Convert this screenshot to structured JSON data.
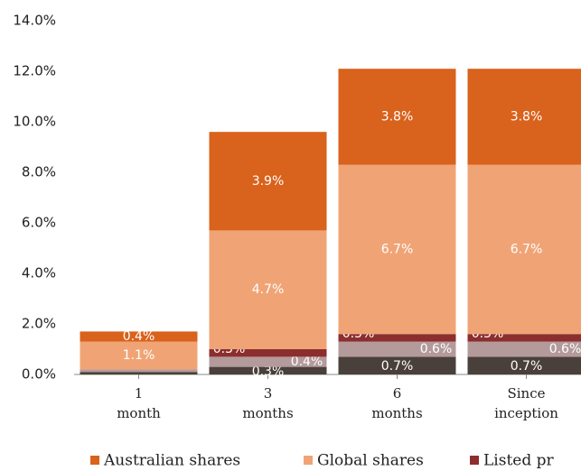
{
  "chart_data": {
    "type": "stacked_bar",
    "categories": [
      "1\nmonth",
      "3\nmonths",
      "6\nmonths",
      "Since\ninception"
    ],
    "series": [
      {
        "color": "#4a403b",
        "values": [
          0.1,
          0.3,
          0.7,
          0.7
        ],
        "value_labels": [
          "0.1%",
          "0.3%",
          "0.7%",
          "0.7%"
        ]
      },
      {
        "color": "#b49a9b",
        "values": [
          0.1,
          0.4,
          0.6,
          0.6
        ],
        "value_labels": [
          "0.1%",
          "0.4%",
          "0.6%",
          "0.6%"
        ]
      },
      {
        "name": "Listed pr",
        "color": "#8c2e2e",
        "values": [
          0.0,
          0.3,
          0.3,
          0.3
        ],
        "value_labels": [
          "0.0%",
          "0.3%",
          "0.3%",
          "0.3%"
        ]
      },
      {
        "name": "Global shares",
        "color": "#f0a476",
        "values": [
          1.1,
          4.7,
          6.7,
          6.7
        ],
        "value_labels": [
          "1.1%",
          "4.7%",
          "6.7%",
          "6.7%"
        ]
      },
      {
        "name": "Australian shares",
        "color": "#d9621c",
        "values": [
          0.4,
          3.9,
          3.8,
          3.8
        ],
        "value_labels": [
          "0.4%",
          "3.9%",
          "3.8%",
          "3.8%"
        ]
      }
    ],
    "ylim": [
      0,
      14
    ],
    "yticks": [
      {
        "value": 0,
        "label": "0.0%"
      },
      {
        "value": 2,
        "label": "2.0%"
      },
      {
        "value": 4,
        "label": "4.0%"
      },
      {
        "value": 6,
        "label": "6.0%"
      },
      {
        "value": 8,
        "label": "8.0%"
      },
      {
        "value": 10,
        "label": "10.0%"
      },
      {
        "value": 12,
        "label": "12.0%"
      },
      {
        "value": 14,
        "label": "14.0%"
      }
    ]
  }
}
